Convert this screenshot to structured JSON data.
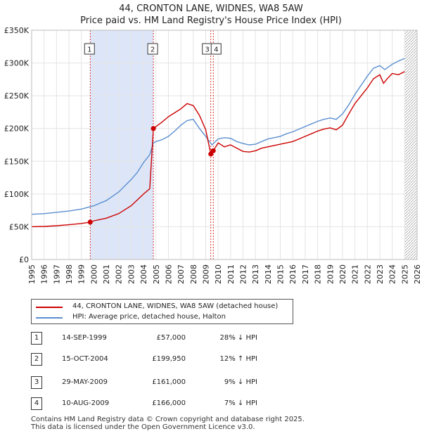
{
  "title": "44, CRONTON LANE, WIDNES, WA8 5AW",
  "subtitle": "Price paid vs. HM Land Registry's House Price Index (HPI)",
  "colors": {
    "property": "#cc0000",
    "hpi": "#5b8fd0",
    "shade": "#dde6f8"
  },
  "chart_data": {
    "type": "line",
    "title": "44, CRONTON LANE, WIDNES, WA8 5AW",
    "subtitle": "Price paid vs. HM Land Registry's House Price Index (HPI)",
    "xlim": [
      1995,
      2026
    ],
    "ylim": [
      0,
      350000
    ],
    "x_ticks": [
      1995,
      1996,
      1997,
      1998,
      1999,
      2000,
      2001,
      2002,
      2003,
      2004,
      2005,
      2006,
      2007,
      2008,
      2009,
      2010,
      2011,
      2012,
      2013,
      2014,
      2015,
      2016,
      2017,
      2018,
      2019,
      2020,
      2021,
      2022,
      2023,
      2024,
      2025,
      2026
    ],
    "y_ticks": [
      0,
      50000,
      100000,
      150000,
      200000,
      250000,
      300000,
      350000
    ],
    "y_tick_labels": [
      "£0",
      "£50K",
      "£100K",
      "£150K",
      "£200K",
      "£250K",
      "£300K",
      "£350K"
    ],
    "grid": true,
    "legend_position": "below",
    "shaded_range": [
      1999.71,
      2004.79
    ],
    "forecast_start": 2025.0,
    "series": [
      {
        "name": "44, CRONTON LANE, WIDNES, WA8 5AW (detached house)",
        "points": [
          [
            1995,
            50000
          ],
          [
            1996,
            50500
          ],
          [
            1997,
            51500
          ],
          [
            1998,
            53000
          ],
          [
            1999,
            55000
          ],
          [
            1999.71,
            57000
          ],
          [
            2000,
            59000
          ],
          [
            2001,
            63000
          ],
          [
            2002,
            70000
          ],
          [
            2003,
            82000
          ],
          [
            2003.5,
            91000
          ],
          [
            2004,
            100000
          ],
          [
            2004.5,
            108000
          ],
          [
            2004.79,
            199950
          ],
          [
            2005,
            203000
          ],
          [
            2005.5,
            210000
          ],
          [
            2006,
            218000
          ],
          [
            2006.5,
            224000
          ],
          [
            2007,
            230000
          ],
          [
            2007.5,
            238000
          ],
          [
            2008,
            235000
          ],
          [
            2008.5,
            220000
          ],
          [
            2009,
            198000
          ],
          [
            2009.41,
            161000
          ],
          [
            2009.61,
            166000
          ],
          [
            2010,
            178000
          ],
          [
            2010.5,
            172000
          ],
          [
            2011,
            175000
          ],
          [
            2011.5,
            170000
          ],
          [
            2012,
            165000
          ],
          [
            2012.5,
            164000
          ],
          [
            2013,
            166000
          ],
          [
            2013.5,
            170000
          ],
          [
            2014,
            172000
          ],
          [
            2014.5,
            174000
          ],
          [
            2015,
            176000
          ],
          [
            2015.5,
            178000
          ],
          [
            2016,
            180000
          ],
          [
            2016.5,
            184000
          ],
          [
            2017,
            188000
          ],
          [
            2017.5,
            192000
          ],
          [
            2018,
            196000
          ],
          [
            2018.5,
            199000
          ],
          [
            2019,
            201000
          ],
          [
            2019.5,
            198000
          ],
          [
            2020,
            205000
          ],
          [
            2020.5,
            222000
          ],
          [
            2021,
            238000
          ],
          [
            2021.5,
            250000
          ],
          [
            2022,
            262000
          ],
          [
            2022.5,
            276000
          ],
          [
            2023,
            282000
          ],
          [
            2023.3,
            269000
          ],
          [
            2023.6,
            276000
          ],
          [
            2024,
            284000
          ],
          [
            2024.5,
            282000
          ],
          [
            2025,
            287000
          ]
        ]
      },
      {
        "name": "HPI: Average price, detached house, Halton",
        "points": [
          [
            1995,
            69000
          ],
          [
            1996,
            70000
          ],
          [
            1997,
            72000
          ],
          [
            1998,
            74000
          ],
          [
            1999,
            77000
          ],
          [
            2000,
            82000
          ],
          [
            2001,
            90000
          ],
          [
            2002,
            103000
          ],
          [
            2003,
            122000
          ],
          [
            2003.5,
            133000
          ],
          [
            2004,
            148000
          ],
          [
            2004.5,
            160000
          ],
          [
            2004.79,
            178000
          ],
          [
            2005,
            180000
          ],
          [
            2005.5,
            183000
          ],
          [
            2006,
            188000
          ],
          [
            2006.5,
            196000
          ],
          [
            2007,
            205000
          ],
          [
            2007.5,
            212000
          ],
          [
            2008,
            214000
          ],
          [
            2008.5,
            200000
          ],
          [
            2009,
            188000
          ],
          [
            2009.5,
            175000
          ],
          [
            2010,
            184000
          ],
          [
            2010.5,
            186000
          ],
          [
            2011,
            185000
          ],
          [
            2011.5,
            180000
          ],
          [
            2012,
            177000
          ],
          [
            2012.5,
            175000
          ],
          [
            2013,
            176000
          ],
          [
            2013.5,
            180000
          ],
          [
            2014,
            184000
          ],
          [
            2014.5,
            186000
          ],
          [
            2015,
            188000
          ],
          [
            2015.5,
            192000
          ],
          [
            2016,
            195000
          ],
          [
            2016.5,
            199000
          ],
          [
            2017,
            203000
          ],
          [
            2017.5,
            207000
          ],
          [
            2018,
            211000
          ],
          [
            2018.5,
            214000
          ],
          [
            2019,
            216000
          ],
          [
            2019.5,
            214000
          ],
          [
            2020,
            222000
          ],
          [
            2020.5,
            236000
          ],
          [
            2021,
            252000
          ],
          [
            2021.5,
            266000
          ],
          [
            2022,
            280000
          ],
          [
            2022.5,
            292000
          ],
          [
            2023,
            296000
          ],
          [
            2023.4,
            290000
          ],
          [
            2023.7,
            294000
          ],
          [
            2024,
            298000
          ],
          [
            2024.5,
            303000
          ],
          [
            2025,
            307000
          ]
        ]
      }
    ],
    "sales": [
      {
        "label": "1",
        "date": "14-SEP-1999",
        "x": 1999.71,
        "price": 57000,
        "hpi": "28% ↓ HPI"
      },
      {
        "label": "2",
        "date": "15-OCT-2004",
        "x": 2004.79,
        "price": 199950,
        "hpi": "12% ↑ HPI"
      },
      {
        "label": "3",
        "date": "29-MAY-2009",
        "x": 2009.41,
        "price": 161000,
        "hpi": "9% ↓ HPI"
      },
      {
        "label": "4",
        "date": "10-AUG-2009",
        "x": 2009.61,
        "price": 166000,
        "hpi": "7% ↓ HPI"
      }
    ]
  },
  "legend": {
    "property": "44, CRONTON LANE, WIDNES, WA8 5AW (detached house)",
    "hpi": "HPI: Average price, detached house, Halton"
  },
  "events": [
    {
      "num": "1",
      "date": "14-SEP-1999",
      "price": "£57,000",
      "hpi": "28% ↓ HPI"
    },
    {
      "num": "2",
      "date": "15-OCT-2004",
      "price": "£199,950",
      "hpi": "12% ↑ HPI"
    },
    {
      "num": "3",
      "date": "29-MAY-2009",
      "price": "£161,000",
      "hpi": "9% ↓ HPI"
    },
    {
      "num": "4",
      "date": "10-AUG-2009",
      "price": "£166,000",
      "hpi": "7% ↓ HPI"
    }
  ],
  "footer": {
    "line1": "Contains HM Land Registry data © Crown copyright and database right 2025.",
    "line2": "This data is licensed under the Open Government Licence v3.0."
  }
}
